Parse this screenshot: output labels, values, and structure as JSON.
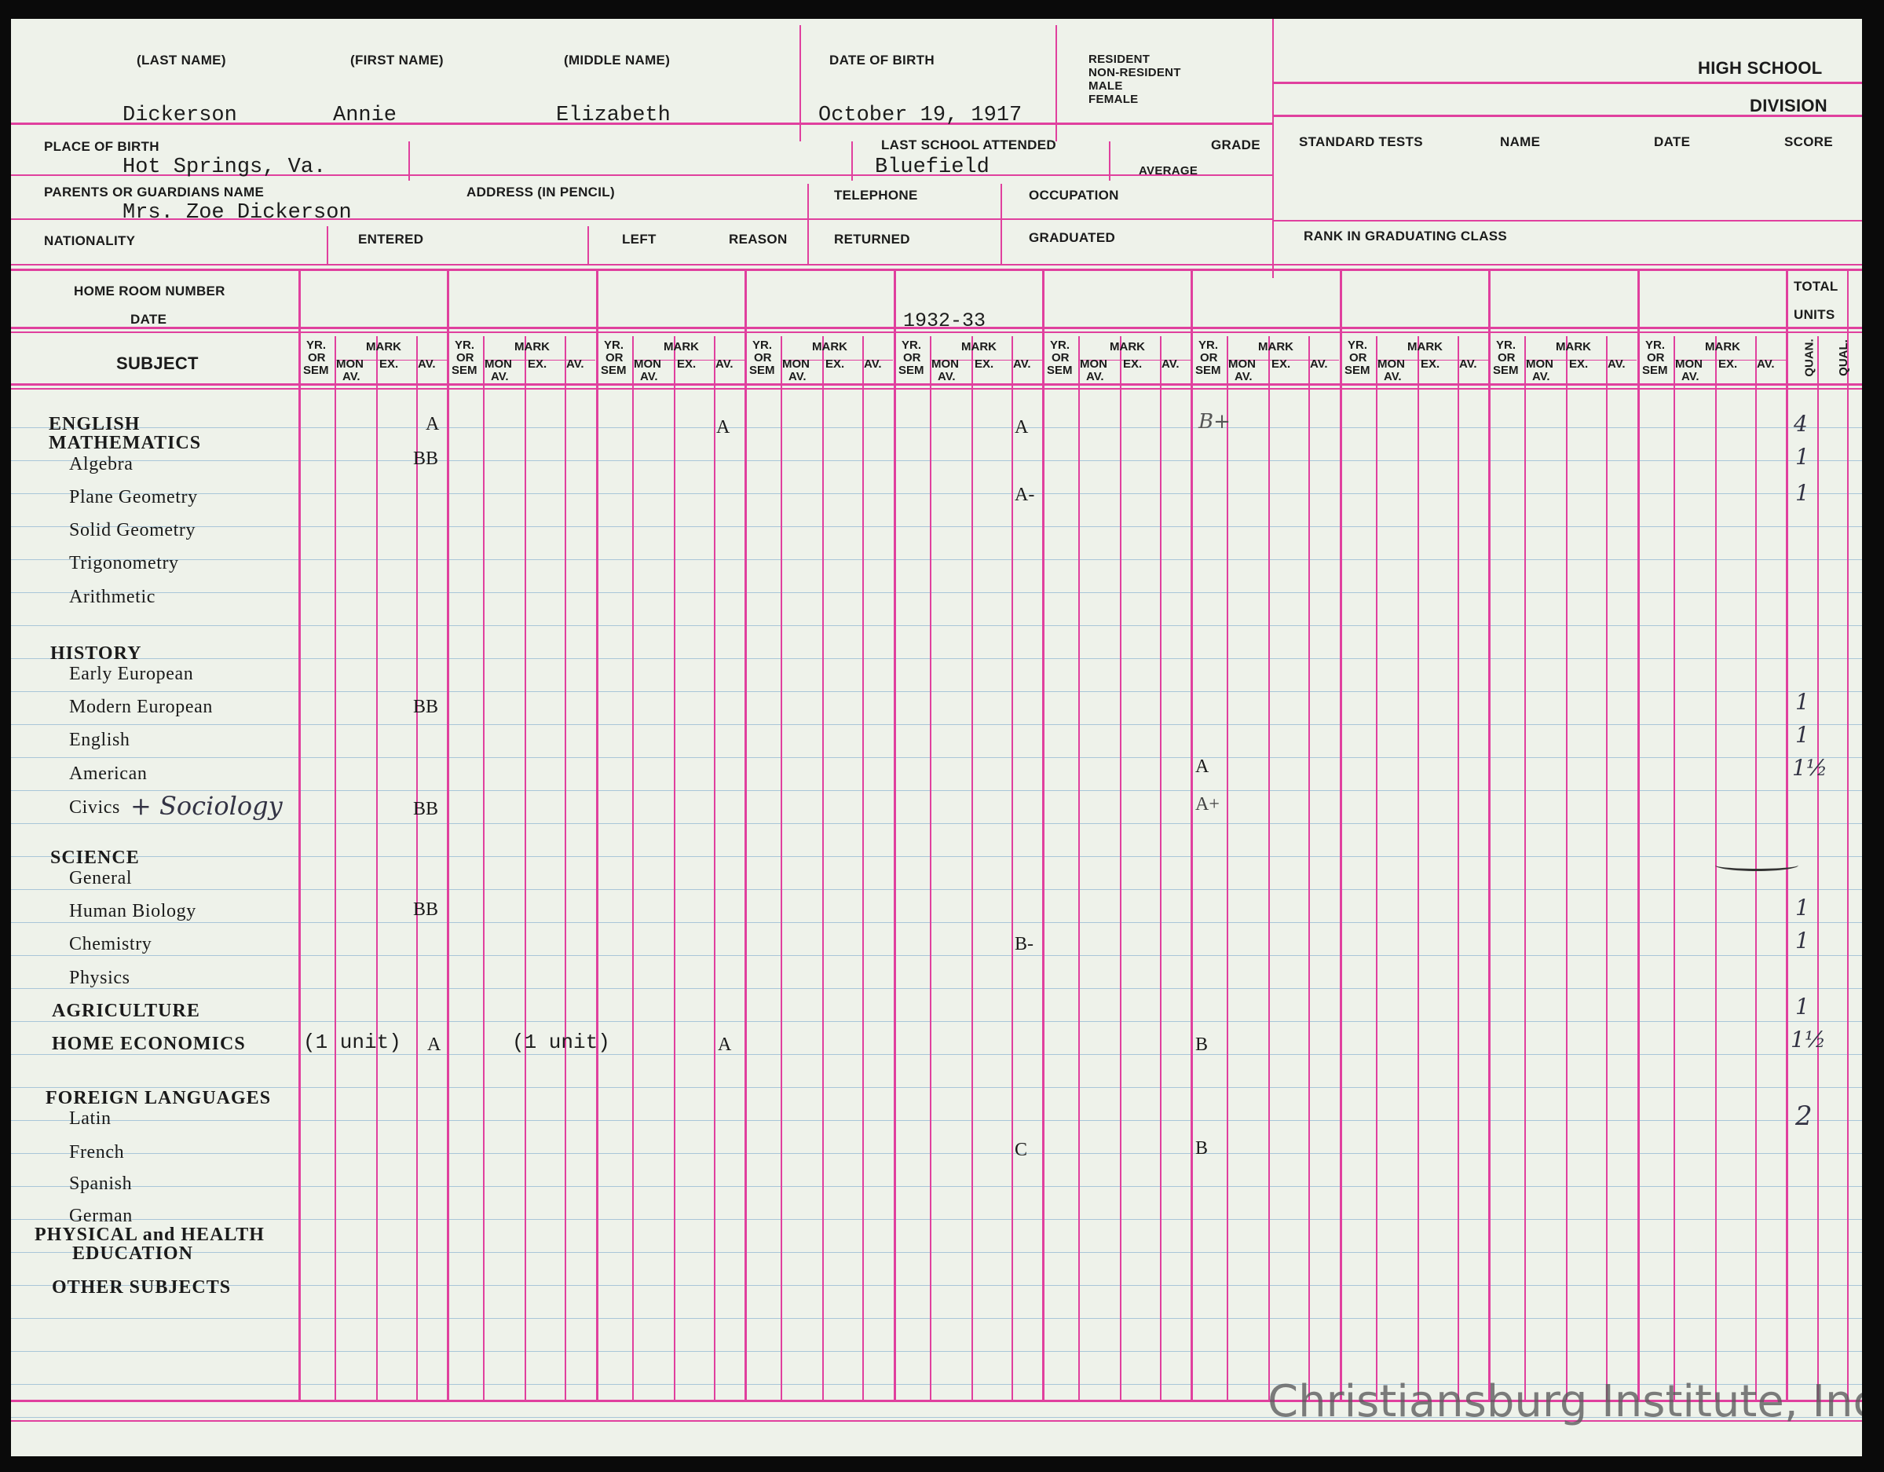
{
  "record": {
    "header_labels": {
      "last_name": "(LAST NAME)",
      "first_name": "(FIRST NAME)",
      "middle_name": "(MIDDLE NAME)",
      "date_of_birth": "DATE OF BIRTH",
      "resident": "RESIDENT",
      "non_resident": "NON-RESIDENT",
      "male": "MALE",
      "female": "FEMALE",
      "high_school": "HIGH SCHOOL",
      "division": "DIVISION",
      "place_of_birth": "PLACE OF BIRTH",
      "last_school": "LAST SCHOOL ATTENDED",
      "grade": "GRADE",
      "average": "AVERAGE",
      "standard_tests": "STANDARD TESTS",
      "name": "NAME",
      "date": "DATE",
      "score": "SCORE",
      "parents": "PARENTS OR GUARDIANS NAME",
      "address": "ADDRESS (IN PENCIL)",
      "telephone": "TELEPHONE",
      "occupation": "OCCUPATION",
      "nationality": "NATIONALITY",
      "entered": "ENTERED",
      "left": "LEFT",
      "reason": "REASON",
      "returned": "RETURNED",
      "graduated": "GRADUATED",
      "rank": "RANK IN GRADUATING CLASS",
      "home_room": "HOME ROOM NUMBER",
      "date_row": "DATE",
      "subject": "SUBJECT",
      "total": "TOTAL",
      "units": "UNITS",
      "quan": "QUAN.",
      "qual": "QUAL."
    },
    "student": {
      "last_name": "Dickerson",
      "first_name": "Annie",
      "middle_name": "Elizabeth",
      "date_of_birth": "October 19, 1917",
      "place_of_birth": "Hot Springs, Va.",
      "last_school": "Bluefield",
      "parent": "Mrs. Zoe Dickerson"
    },
    "column_labels": {
      "yr": "YR.",
      "or": "OR",
      "sem": "SEM",
      "mark": "MARK",
      "mon": "MON",
      "av_sub": "AV.",
      "ex": "EX.",
      "av": "AV."
    },
    "school_year": "1932-33",
    "subjects": {
      "english": "ENGLISH",
      "mathematics": "MATHEMATICS",
      "algebra": "Algebra",
      "plane_geometry": "Plane Geometry",
      "solid_geometry": "Solid Geometry",
      "trigonometry": "Trigonometry",
      "arithmetic": "Arithmetic",
      "history": "HISTORY",
      "early_european": "Early European",
      "modern_european": "Modern European",
      "english_hist": "English",
      "american": "American",
      "civics": "Civics",
      "civics_hand": "+ Sociology",
      "science": "SCIENCE",
      "general": "General",
      "human_biology": "Human Biology",
      "chemistry": "Chemistry",
      "physics": "Physics",
      "agriculture": "AGRICULTURE",
      "home_economics": "HOME ECONOMICS",
      "foreign_languages": "FOREIGN LANGUAGES",
      "latin": "Latin",
      "french": "French",
      "spanish": "Spanish",
      "german": "German",
      "phys_ed_1": "PHYSICAL and HEALTH",
      "phys_ed_2": "EDUCATION",
      "other": "OTHER SUBJECTS"
    },
    "marks": {
      "english": [
        "A",
        "A",
        "A",
        "B+"
      ],
      "algebra": "BB",
      "plane_geometry": "A-",
      "modern_european": "BB",
      "american": "A",
      "civics": [
        "BB",
        "A+"
      ],
      "human_biology": "BB",
      "chemistry": "B-",
      "home_economics": [
        "(1 unit)",
        "A",
        "(1 unit)",
        "A",
        "B"
      ],
      "french": [
        "C",
        "B"
      ]
    },
    "units": {
      "english": "4",
      "algebra": "1",
      "plane_geometry": "1",
      "modern_european": "1",
      "english_hist": "1",
      "american": "1½",
      "human_biology": "1",
      "chemistry": "1",
      "agriculture": "1",
      "home_economics": "1½",
      "foreign": "2"
    }
  },
  "watermark": "Christiansburg Institute, Inc",
  "colors": {
    "ruling": "#e0409e",
    "paper": "#eef2ea",
    "blue_ruling": "#a9c6d8",
    "border": "#0a0a0a"
  }
}
